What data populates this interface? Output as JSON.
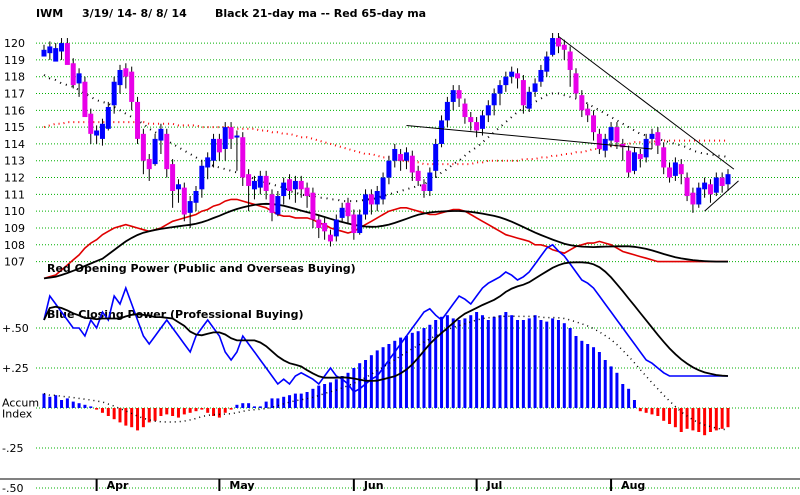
{
  "header": {
    "ticker": "IWM",
    "date_range": "3/19/ 14- 8/ 8/ 14",
    "ma_legend": "Black 21-day ma --  Red 65-day ma"
  },
  "colors": {
    "up_candle": "#0000ff",
    "down_candle": "#e800e8",
    "ma21": "#000000",
    "ma65": "#ff0000",
    "grid": "#00b000",
    "red_line": "#e00000",
    "blue_line": "#0000ff",
    "accum_pos": "#0000ff",
    "accum_neg": "#ff0000"
  },
  "chart_data": {
    "type": "line",
    "panels": {
      "price": {
        "y_ticks": [
          120,
          119,
          118,
          117,
          116,
          115,
          114,
          113,
          112,
          111,
          110,
          109,
          108,
          107
        ],
        "ylim": [
          106.5,
          120.6
        ]
      },
      "indicator": {
        "y_ticks": [
          "+.50",
          "+.25",
          "Accum\nIndex",
          "-.25",
          "-.50"
        ]
      }
    },
    "x_months": [
      "Apr",
      "May",
      "Jun",
      "Jul",
      "Aug"
    ],
    "series_labels": {
      "opening_power": "Red Opening Power (Public and Overseas Buying)",
      "closing_power": "Blue Closing Power (Professional Buying)"
    },
    "candles": [
      [
        119.2,
        119.6,
        119.4
      ],
      [
        119.4,
        119.8,
        119.0
      ],
      [
        118.9,
        119.7,
        119.5
      ],
      [
        119.5,
        120.0,
        119.0
      ],
      [
        120.0,
        118.7,
        119.4
      ],
      [
        118.8,
        117.5,
        117.3
      ],
      [
        117.6,
        118.2,
        116.8
      ],
      [
        117.7,
        115.6,
        116.0
      ],
      [
        115.8,
        114.6,
        114.0
      ],
      [
        114.5,
        114.8,
        114.0
      ],
      [
        114.3,
        115.2,
        113.9
      ],
      [
        114.9,
        116.2,
        114.8
      ],
      [
        116.3,
        117.7,
        115.8
      ],
      [
        117.5,
        118.4,
        117.0
      ],
      [
        118.5,
        118.0,
        117.3
      ],
      [
        118.3,
        116.5,
        116.0
      ],
      [
        116.5,
        114.3,
        114.0
      ],
      [
        114.6,
        113.0,
        112.2
      ],
      [
        113.1,
        112.5,
        111.8
      ],
      [
        112.8,
        114.3,
        112.7
      ],
      [
        114.2,
        114.9,
        113.4
      ],
      [
        114.6,
        112.5,
        112.0
      ],
      [
        112.8,
        111.2,
        110.2
      ],
      [
        111.3,
        111.6,
        110.5
      ],
      [
        111.4,
        109.8,
        109.4
      ],
      [
        109.9,
        110.6,
        109.0
      ],
      [
        110.5,
        111.2,
        110.0
      ],
      [
        111.3,
        112.7,
        110.8
      ],
      [
        112.6,
        113.2,
        111.9
      ],
      [
        113.0,
        114.3,
        112.6
      ],
      [
        114.3,
        113.5,
        113.0
      ],
      [
        113.7,
        115.0,
        113.0
      ],
      [
        115.0,
        114.3,
        113.7
      ],
      [
        114.4,
        114.5,
        112.4
      ],
      [
        114.4,
        112.0,
        111.5
      ],
      [
        112.2,
        111.5,
        110.0
      ],
      [
        111.3,
        111.8,
        110.7
      ],
      [
        111.4,
        112.1,
        111.0
      ],
      [
        112.1,
        111.2,
        110.7
      ],
      [
        111.0,
        109.9,
        109.4
      ],
      [
        109.8,
        110.9,
        109.7
      ],
      [
        110.9,
        111.7,
        110.4
      ],
      [
        111.9,
        111.2,
        110.7
      ],
      [
        111.3,
        111.8,
        110.5
      ],
      [
        111.8,
        111.3,
        110.8
      ],
      [
        111.4,
        110.9,
        110.2
      ],
      [
        111.1,
        109.5,
        109.0
      ],
      [
        109.5,
        109.0,
        108.4
      ],
      [
        109.3,
        108.8,
        108.3
      ],
      [
        108.6,
        108.2,
        107.9
      ],
      [
        108.5,
        109.5,
        108.2
      ],
      [
        109.6,
        110.2,
        109.4
      ],
      [
        110.5,
        109.7,
        109.3
      ],
      [
        109.8,
        108.7,
        108.3
      ],
      [
        108.7,
        109.8,
        108.6
      ],
      [
        109.8,
        111.0,
        109.5
      ],
      [
        111.0,
        110.4,
        109.8
      ],
      [
        110.4,
        111.2,
        110.0
      ],
      [
        110.7,
        112.0,
        110.4
      ],
      [
        112.0,
        113.0,
        111.6
      ],
      [
        113.0,
        113.7,
        112.6
      ],
      [
        113.4,
        113.0,
        112.4
      ],
      [
        113.0,
        113.5,
        112.5
      ],
      [
        113.3,
        112.3,
        111.8
      ],
      [
        112.4,
        111.8,
        111.5
      ],
      [
        111.6,
        111.2,
        110.8
      ],
      [
        111.2,
        112.3,
        110.9
      ],
      [
        112.4,
        114.0,
        112.0
      ],
      [
        114.0,
        115.4,
        113.8
      ],
      [
        115.4,
        116.5,
        115.0
      ],
      [
        116.5,
        117.2,
        116.0
      ],
      [
        117.2,
        116.7,
        116.2
      ],
      [
        116.4,
        115.6,
        115.2
      ],
      [
        115.6,
        115.3,
        114.8
      ],
      [
        115.3,
        114.8,
        114.4
      ],
      [
        114.9,
        115.7,
        114.5
      ],
      [
        115.7,
        116.3,
        115.3
      ],
      [
        116.3,
        117.0,
        115.7
      ],
      [
        117.0,
        117.5,
        116.3
      ],
      [
        117.5,
        118.0,
        117.1
      ],
      [
        118.0,
        118.3,
        117.6
      ],
      [
        118.2,
        117.9,
        117.3
      ],
      [
        117.8,
        116.3,
        115.8
      ],
      [
        116.1,
        117.1,
        115.9
      ],
      [
        117.1,
        117.6,
        116.8
      ],
      [
        117.7,
        118.4,
        117.4
      ],
      [
        118.3,
        119.2,
        118.0
      ],
      [
        119.3,
        120.3,
        119.2
      ],
      [
        120.3,
        119.8,
        119.4
      ],
      [
        119.9,
        119.6,
        119.0
      ],
      [
        119.5,
        118.4,
        117.4
      ],
      [
        118.2,
        117.0,
        116.7
      ],
      [
        116.9,
        116.0,
        115.6
      ],
      [
        116.1,
        115.7,
        115.3
      ],
      [
        115.7,
        114.7,
        114.2
      ],
      [
        114.6,
        113.7,
        113.4
      ],
      [
        113.6,
        114.3,
        113.2
      ],
      [
        114.2,
        115.0,
        113.8
      ],
      [
        115.0,
        114.1,
        113.7
      ],
      [
        114.0,
        113.8,
        113.0
      ],
      [
        113.6,
        112.3,
        112.0
      ],
      [
        112.4,
        113.5,
        112.2
      ],
      [
        113.4,
        113.1,
        112.6
      ],
      [
        113.2,
        114.3,
        112.9
      ],
      [
        114.3,
        114.6,
        113.7
      ],
      [
        114.7,
        113.9,
        113.4
      ],
      [
        113.8,
        112.6,
        112.2
      ],
      [
        112.6,
        112.0,
        111.7
      ],
      [
        112.1,
        112.9,
        111.8
      ],
      [
        112.8,
        112.2,
        111.6
      ],
      [
        112.0,
        110.9,
        110.6
      ],
      [
        111.1,
        110.4,
        109.9
      ],
      [
        110.4,
        111.4,
        110.2
      ],
      [
        111.3,
        111.7,
        110.8
      ],
      [
        111.6,
        111.0,
        110.5
      ],
      [
        111.1,
        112.0,
        110.9
      ],
      [
        112.0,
        111.5,
        111.1
      ],
      [
        111.6,
        112.2,
        111.2
      ]
    ],
    "ma21": [
      118.1,
      117.9,
      117.8,
      117.6,
      117.5,
      117.4,
      117.2,
      117.0,
      116.8,
      116.6,
      116.5,
      116.4,
      116.2,
      116.0,
      115.8,
      115.6,
      115.4,
      115.2,
      114.9,
      114.7,
      114.5,
      114.2,
      114.0,
      113.8,
      113.6,
      113.4,
      113.2,
      113.0,
      112.8,
      112.7,
      112.6,
      112.5,
      112.4,
      112.3,
      112.2,
      112.1,
      111.9,
      111.8,
      111.7,
      111.6,
      111.5,
      111.4,
      111.2,
      111.1,
      111.0,
      110.9,
      110.9,
      110.8,
      110.8,
      110.7,
      110.7,
      110.6,
      110.6,
      110.6,
      110.6,
      110.7,
      110.7,
      110.8,
      110.9,
      111.0,
      111.1,
      111.2,
      111.3,
      111.4,
      111.5,
      111.6,
      111.8,
      112.0,
      112.3,
      112.5,
      112.8,
      113.0,
      113.3,
      113.6,
      113.8,
      114.1,
      114.4,
      114.7,
      115.0,
      115.3,
      115.6,
      115.9,
      116.1,
      116.3,
      116.5,
      116.7,
      116.9,
      117.0,
      117.0,
      116.9,
      116.8,
      116.7,
      116.6,
      116.4,
      116.2,
      116.0,
      115.8,
      115.6,
      115.4,
      115.2,
      115.0,
      114.8,
      114.6,
      114.5,
      114.4,
      114.3,
      114.2,
      114.1,
      114.0,
      113.9,
      113.8,
      113.6,
      113.5,
      113.4,
      113.4,
      113.3,
      113.3,
      113.2
    ],
    "ma65": [
      115.0,
      115.1,
      115.2,
      115.2,
      115.3,
      115.3,
      115.3,
      115.3,
      115.3,
      115.3,
      115.3,
      115.3,
      115.3,
      115.3,
      115.3,
      115.3,
      115.3,
      115.3,
      115.2,
      115.2,
      115.2,
      115.2,
      115.2,
      115.1,
      115.1,
      115.1,
      115.1,
      115.0,
      115.0,
      115.0,
      115.0,
      115.0,
      115.0,
      114.9,
      114.9,
      114.9,
      114.9,
      114.8,
      114.8,
      114.7,
      114.7,
      114.6,
      114.6,
      114.5,
      114.4,
      114.4,
      114.3,
      114.2,
      114.1,
      114.0,
      113.9,
      113.8,
      113.7,
      113.6,
      113.5,
      113.4,
      113.4,
      113.3,
      113.2,
      113.2,
      113.1,
      113.0,
      113.0,
      112.9,
      112.9,
      112.8,
      112.8,
      112.8,
      112.8,
      112.8,
      112.8,
      112.8,
      112.8,
      112.8,
      112.9,
      112.9,
      113.0,
      113.0,
      113.0,
      113.0,
      113.0,
      113.0,
      113.1,
      113.1,
      113.1,
      113.2,
      113.2,
      113.3,
      113.3,
      113.4,
      113.4,
      113.5,
      113.5,
      113.6,
      113.7,
      113.7,
      113.8,
      113.9,
      113.9,
      114.0,
      114.0,
      114.1,
      114.1,
      114.1,
      114.1,
      114.2,
      114.2,
      114.2,
      114.2,
      114.2,
      114.2,
      114.2,
      114.2,
      114.2,
      114.2,
      114.2,
      114.2,
      114.2
    ],
    "red_opening_power": [
      106.0,
      106.1,
      106.2,
      106.5,
      106.8,
      107.1,
      107.4,
      107.8,
      108.1,
      108.3,
      108.6,
      108.8,
      109.0,
      109.1,
      109.2,
      109.1,
      109.0,
      108.9,
      108.8,
      108.9,
      109.0,
      109.2,
      109.4,
      109.5,
      109.6,
      109.7,
      109.8,
      110.0,
      110.1,
      110.3,
      110.4,
      110.6,
      110.7,
      110.7,
      110.6,
      110.5,
      110.4,
      110.3,
      110.2,
      110.0,
      109.8,
      109.7,
      109.7,
      109.6,
      109.6,
      109.6,
      109.5,
      109.3,
      109.2,
      109.0,
      108.9,
      108.8,
      108.7,
      108.8,
      109.0,
      109.2,
      109.4,
      109.6,
      109.8,
      110.0,
      110.1,
      110.2,
      110.2,
      110.1,
      110.0,
      109.9,
      109.8,
      109.8,
      109.9,
      110.0,
      110.1,
      110.1,
      110.0,
      109.8,
      109.6,
      109.4,
      109.2,
      109.0,
      108.8,
      108.6,
      108.5,
      108.4,
      108.3,
      108.2,
      108.0,
      108.0,
      107.9,
      107.7,
      107.6,
      107.5,
      107.7,
      107.9,
      108.0,
      108.1,
      108.1,
      108.2,
      108.1,
      108.0,
      107.8,
      107.6,
      107.5,
      107.4,
      107.3,
      107.2,
      107.1,
      107.0,
      107.0,
      107.0,
      107.0,
      107.0,
      107.0,
      107.0,
      107.0,
      107.0,
      107.0,
      107.0,
      107.0,
      107.0
    ],
    "blue_closing_power": [
      0.55,
      0.7,
      0.65,
      0.6,
      0.55,
      0.5,
      0.5,
      0.45,
      0.55,
      0.5,
      0.6,
      0.55,
      0.7,
      0.65,
      0.75,
      0.65,
      0.55,
      0.45,
      0.4,
      0.45,
      0.5,
      0.55,
      0.5,
      0.45,
      0.4,
      0.35,
      0.45,
      0.5,
      0.55,
      0.5,
      0.45,
      0.35,
      0.3,
      0.35,
      0.45,
      0.4,
      0.35,
      0.3,
      0.25,
      0.2,
      0.15,
      0.18,
      0.15,
      0.2,
      0.22,
      0.2,
      0.18,
      0.15,
      0.2,
      0.25,
      0.2,
      0.18,
      0.15,
      0.1,
      0.12,
      0.15,
      0.18,
      0.2,
      0.25,
      0.3,
      0.35,
      0.4,
      0.45,
      0.5,
      0.55,
      0.6,
      0.62,
      0.58,
      0.55,
      0.6,
      0.65,
      0.7,
      0.68,
      0.65,
      0.7,
      0.75,
      0.78,
      0.8,
      0.82,
      0.85,
      0.83,
      0.8,
      0.82,
      0.85,
      0.9,
      0.95,
      1.0,
      1.02,
      0.98,
      0.95,
      0.9,
      0.85,
      0.8,
      0.78,
      0.75,
      0.7,
      0.65,
      0.6,
      0.55,
      0.5,
      0.45,
      0.4,
      0.35,
      0.3,
      0.28,
      0.25,
      0.22,
      0.2,
      0.2,
      0.2,
      0.2,
      0.2,
      0.2,
      0.2,
      0.2,
      0.2,
      0.2,
      0.2
    ],
    "accum_index": [
      0.09,
      0.07,
      0.08,
      0.05,
      0.06,
      0.04,
      0.03,
      0.02,
      0.01,
      -0.01,
      -0.03,
      -0.05,
      -0.07,
      -0.09,
      -0.11,
      -0.12,
      -0.14,
      -0.12,
      -0.09,
      -0.08,
      -0.05,
      -0.04,
      -0.05,
      -0.06,
      -0.04,
      -0.03,
      -0.02,
      -0.01,
      -0.03,
      -0.05,
      -0.06,
      -0.03,
      -0.01,
      0.02,
      0.03,
      0.03,
      0.01,
      0.01,
      0.04,
      0.06,
      0.06,
      0.07,
      0.08,
      0.09,
      0.09,
      0.1,
      0.12,
      0.14,
      0.15,
      0.16,
      0.18,
      0.2,
      0.22,
      0.25,
      0.28,
      0.3,
      0.33,
      0.36,
      0.38,
      0.4,
      0.42,
      0.44,
      0.45,
      0.47,
      0.48,
      0.5,
      0.52,
      0.55,
      0.57,
      0.58,
      0.56,
      0.55,
      0.56,
      0.58,
      0.6,
      0.58,
      0.55,
      0.57,
      0.58,
      0.6,
      0.58,
      0.55,
      0.55,
      0.56,
      0.58,
      0.55,
      0.54,
      0.56,
      0.55,
      0.53,
      0.5,
      0.45,
      0.42,
      0.4,
      0.38,
      0.35,
      0.3,
      0.26,
      0.22,
      0.15,
      0.12,
      0.05,
      -0.02,
      -0.03,
      -0.04,
      -0.05,
      -0.08,
      -0.1,
      -0.12,
      -0.15,
      -0.13,
      -0.14,
      -0.15,
      -0.17,
      -0.15,
      -0.14,
      -0.13,
      -0.12
    ]
  }
}
